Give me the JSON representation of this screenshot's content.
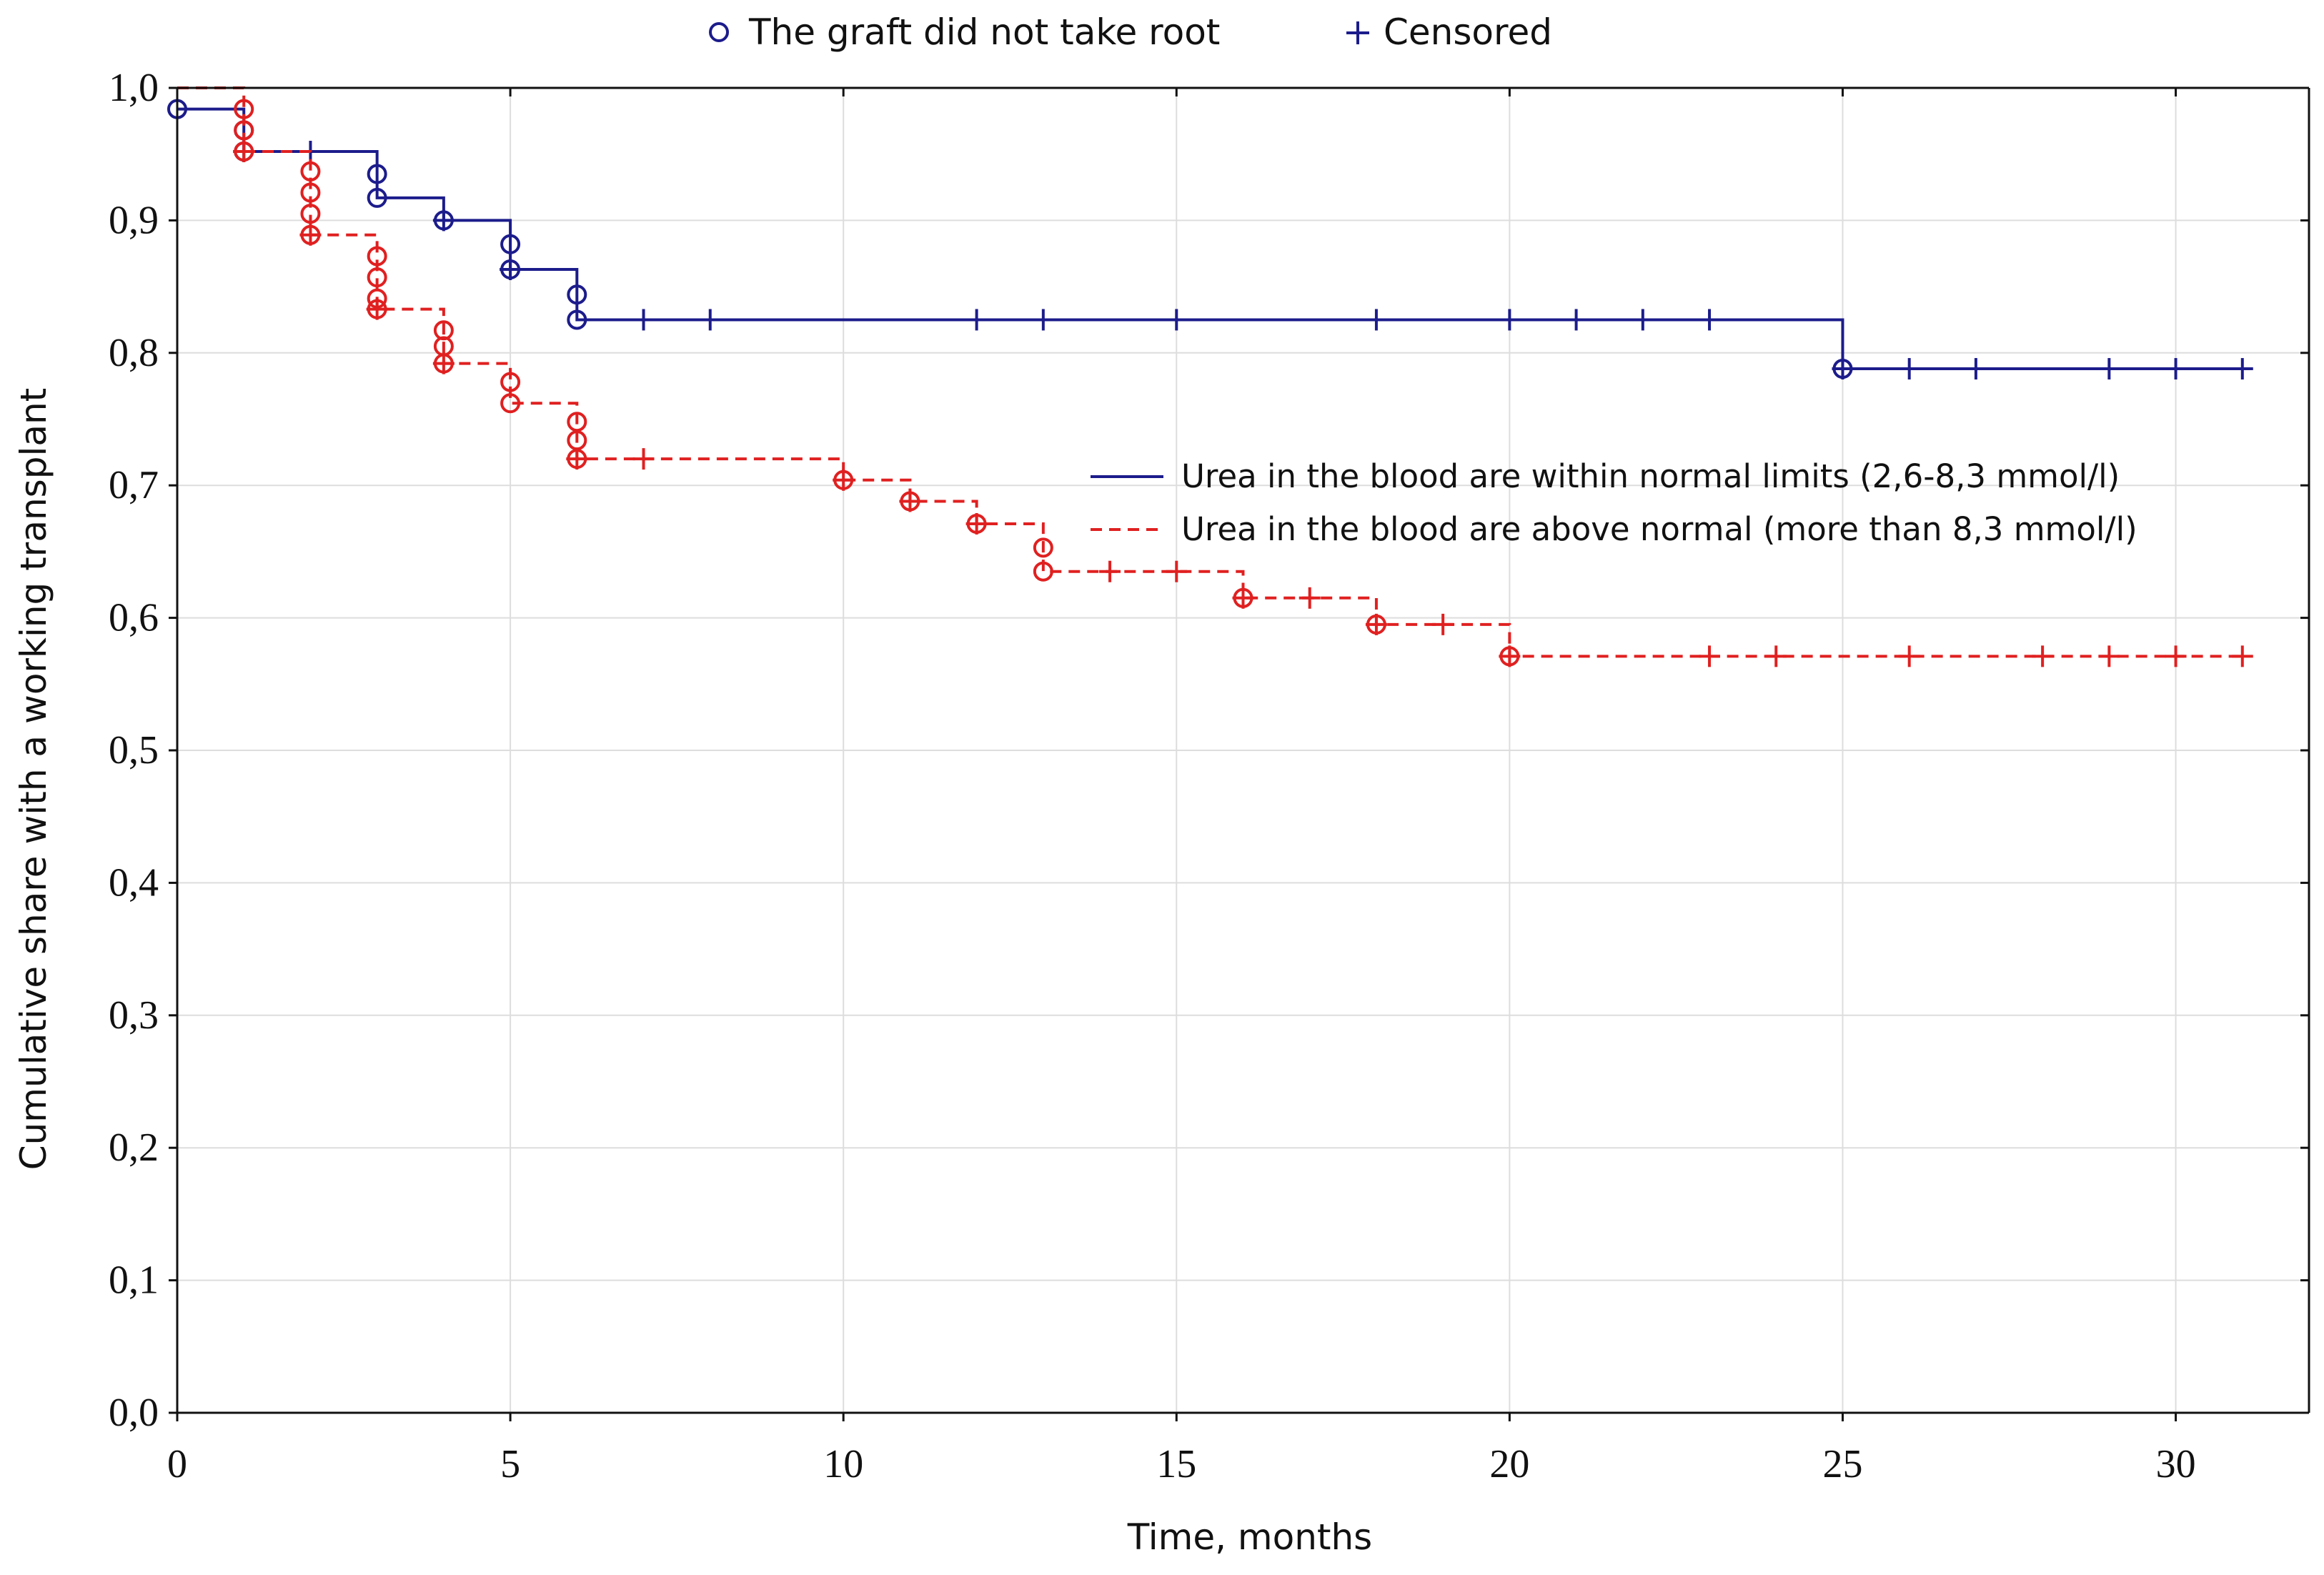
{
  "colors": {
    "series_normal": "#1c1c8c",
    "series_above": "#e02020",
    "grid": "#dddddd",
    "axis": "#111111",
    "text": "#111111"
  },
  "top_legend": {
    "failed_label": "The graft did not take root",
    "censored_label": "Censored"
  },
  "chart_data": {
    "type": "line",
    "step": true,
    "title": "",
    "xlabel": "Time, months",
    "ylabel": "Cumulative share with a working transplant",
    "xlim": [
      0,
      32
    ],
    "ylim": [
      0,
      1
    ],
    "x_ticks": [
      0,
      5,
      10,
      15,
      20,
      25,
      30
    ],
    "x_tick_labels": [
      "0",
      "5",
      "10",
      "15",
      "20",
      "25",
      "30"
    ],
    "y_ticks": [
      0,
      0.1,
      0.2,
      0.3,
      0.4,
      0.5,
      0.6,
      0.7,
      0.8,
      0.9,
      1.0
    ],
    "y_tick_labels": [
      "0,0",
      "0,1",
      "0,2",
      "0,3",
      "0,4",
      "0,5",
      "0,6",
      "0,7",
      "0,8",
      "0,9",
      "1,0"
    ],
    "grid": true,
    "legend_placement": "right",
    "series": [
      {
        "name": "Urea in the blood are within normal limits (2,6-8,3 mmol/l)",
        "color": "#1c1c8c",
        "style": "solid",
        "steps": [
          [
            0,
            0.984
          ],
          [
            1,
            0.952
          ],
          [
            3,
            0.917
          ],
          [
            4,
            0.9
          ],
          [
            5,
            0.863
          ],
          [
            6,
            0.825
          ],
          [
            25,
            0.788
          ],
          [
            31,
            0.788
          ]
        ],
        "events": [
          [
            0,
            0.984
          ],
          [
            1,
            0.968
          ],
          [
            1,
            0.952
          ],
          [
            3,
            0.935
          ],
          [
            3,
            0.917
          ],
          [
            4,
            0.9
          ],
          [
            5,
            0.882
          ],
          [
            5,
            0.863
          ],
          [
            6,
            0.844
          ],
          [
            6,
            0.825
          ],
          [
            25,
            0.788
          ]
        ],
        "censored": [
          [
            1,
            0.952
          ],
          [
            2,
            0.952
          ],
          [
            4,
            0.9
          ],
          [
            5,
            0.863
          ],
          [
            7,
            0.825
          ],
          [
            8,
            0.825
          ],
          [
            12,
            0.825
          ],
          [
            13,
            0.825
          ],
          [
            15,
            0.825
          ],
          [
            18,
            0.825
          ],
          [
            20,
            0.825
          ],
          [
            21,
            0.825
          ],
          [
            22,
            0.825
          ],
          [
            23,
            0.825
          ],
          [
            25,
            0.788
          ],
          [
            26,
            0.788
          ],
          [
            27,
            0.788
          ],
          [
            29,
            0.788
          ],
          [
            30,
            0.788
          ],
          [
            31,
            0.788
          ]
        ]
      },
      {
        "name": "Urea in the blood are above normal (more than 8,3 mmol/l)",
        "color": "#e02020",
        "style": "dashed",
        "steps": [
          [
            0,
            1.0
          ],
          [
            1,
            0.952
          ],
          [
            2,
            0.889
          ],
          [
            3,
            0.833
          ],
          [
            4,
            0.792
          ],
          [
            5,
            0.762
          ],
          [
            6,
            0.72
          ],
          [
            10,
            0.704
          ],
          [
            11,
            0.688
          ],
          [
            12,
            0.671
          ],
          [
            13,
            0.635
          ],
          [
            16,
            0.615
          ],
          [
            18,
            0.595
          ],
          [
            20,
            0.571
          ],
          [
            31,
            0.571
          ]
        ],
        "events": [
          [
            1,
            0.984
          ],
          [
            1,
            0.968
          ],
          [
            1,
            0.952
          ],
          [
            2,
            0.937
          ],
          [
            2,
            0.921
          ],
          [
            2,
            0.905
          ],
          [
            2,
            0.889
          ],
          [
            3,
            0.873
          ],
          [
            3,
            0.857
          ],
          [
            3,
            0.841
          ],
          [
            3,
            0.833
          ],
          [
            4,
            0.817
          ],
          [
            4,
            0.805
          ],
          [
            4,
            0.792
          ],
          [
            5,
            0.778
          ],
          [
            5,
            0.762
          ],
          [
            6,
            0.748
          ],
          [
            6,
            0.734
          ],
          [
            6,
            0.72
          ],
          [
            10,
            0.704
          ],
          [
            11,
            0.688
          ],
          [
            12,
            0.671
          ],
          [
            13,
            0.653
          ],
          [
            13,
            0.635
          ],
          [
            16,
            0.615
          ],
          [
            18,
            0.595
          ],
          [
            20,
            0.571
          ]
        ],
        "censored": [
          [
            1,
            0.952
          ],
          [
            2,
            0.889
          ],
          [
            3,
            0.833
          ],
          [
            4,
            0.792
          ],
          [
            6,
            0.72
          ],
          [
            7,
            0.72
          ],
          [
            10,
            0.704
          ],
          [
            11,
            0.688
          ],
          [
            12,
            0.671
          ],
          [
            14,
            0.635
          ],
          [
            15,
            0.635
          ],
          [
            16,
            0.615
          ],
          [
            17,
            0.615
          ],
          [
            18,
            0.595
          ],
          [
            19,
            0.595
          ],
          [
            20,
            0.571
          ],
          [
            23,
            0.571
          ],
          [
            24,
            0.571
          ],
          [
            26,
            0.571
          ],
          [
            28,
            0.571
          ],
          [
            29,
            0.571
          ],
          [
            30,
            0.571
          ],
          [
            31,
            0.571
          ]
        ]
      }
    ]
  }
}
